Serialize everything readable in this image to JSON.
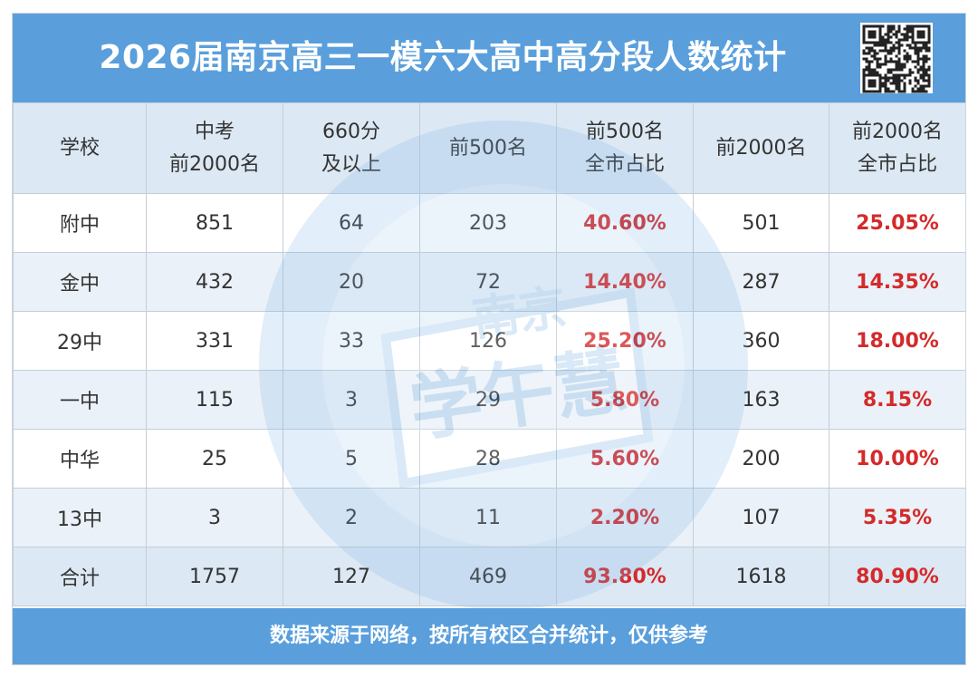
{
  "title": "2026届南京高三一模六大高中高分段人数统计",
  "watermark": {
    "line1": "南京",
    "line2": "学午慧"
  },
  "table": {
    "headers": [
      [
        "学校"
      ],
      [
        "中考",
        "前2000名"
      ],
      [
        "660分",
        "及以上"
      ],
      [
        "前500名"
      ],
      [
        "前500名",
        "全市占比"
      ],
      [
        "前2000名"
      ],
      [
        "前2000名",
        "全市占比"
      ]
    ],
    "rows": [
      [
        "附中",
        "851",
        "64",
        "203",
        "40.60%",
        "501",
        "25.05%"
      ],
      [
        "金中",
        "432",
        "20",
        "72",
        "14.40%",
        "287",
        "14.35%"
      ],
      [
        "29中",
        "331",
        "33",
        "126",
        "25.20%",
        "360",
        "18.00%"
      ],
      [
        "一中",
        "115",
        "3",
        "29",
        "5.80%",
        "163",
        "8.15%"
      ],
      [
        "中华",
        "25",
        "5",
        "28",
        "5.60%",
        "200",
        "10.00%"
      ],
      [
        "13中",
        "3",
        "2",
        "11",
        "2.20%",
        "107",
        "5.35%"
      ],
      [
        "合计",
        "1757",
        "127",
        "469",
        "93.80%",
        "1618",
        "80.90%"
      ]
    ]
  },
  "footer": "数据来源于网络，按所有校区合并统计，仅供参考",
  "colors": {
    "banner": "#5a9fdc",
    "header_bg": "#dce8f3",
    "alt_row_bg": "#eaf1f8",
    "percent_text": "#d42a2a"
  },
  "icons": {
    "qr": "qr-code-icon"
  }
}
